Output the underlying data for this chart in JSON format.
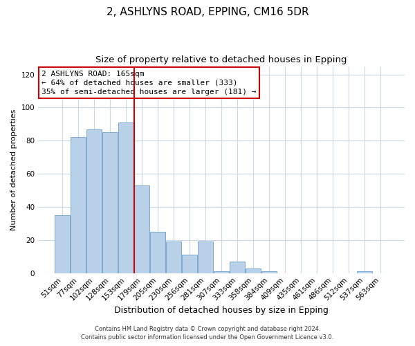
{
  "title1": "2, ASHLYNS ROAD, EPPING, CM16 5DR",
  "title2": "Size of property relative to detached houses in Epping",
  "xlabel": "Distribution of detached houses by size in Epping",
  "ylabel": "Number of detached properties",
  "bar_labels": [
    "51sqm",
    "77sqm",
    "102sqm",
    "128sqm",
    "153sqm",
    "179sqm",
    "205sqm",
    "230sqm",
    "256sqm",
    "281sqm",
    "307sqm",
    "333sqm",
    "358sqm",
    "384sqm",
    "409sqm",
    "435sqm",
    "461sqm",
    "486sqm",
    "512sqm",
    "537sqm",
    "563sqm"
  ],
  "bar_values": [
    35,
    82,
    87,
    85,
    91,
    53,
    25,
    19,
    11,
    19,
    1,
    7,
    3,
    1,
    0,
    0,
    0,
    0,
    0,
    1,
    0
  ],
  "bar_color": "#b8d0e8",
  "bar_edge_color": "#7aaad0",
  "vline_pos": 4.5,
  "vline_color": "#cc0000",
  "annotation_title": "2 ASHLYNS ROAD: 165sqm",
  "annotation_line1": "← 64% of detached houses are smaller (333)",
  "annotation_line2": "35% of semi-detached houses are larger (181) →",
  "annotation_box_color": "#ffffff",
  "annotation_box_edge": "#cc0000",
  "ylim": [
    0,
    125
  ],
  "yticks": [
    0,
    20,
    40,
    60,
    80,
    100,
    120
  ],
  "footer1": "Contains HM Land Registry data © Crown copyright and database right 2024.",
  "footer2": "Contains public sector information licensed under the Open Government Licence v3.0.",
  "background_color": "#ffffff",
  "grid_color": "#c8d8e8",
  "title1_fontsize": 11,
  "title2_fontsize": 9.5,
  "xlabel_fontsize": 9,
  "ylabel_fontsize": 8,
  "tick_fontsize": 7.5,
  "footer_fontsize": 6,
  "annotation_fontsize": 8
}
